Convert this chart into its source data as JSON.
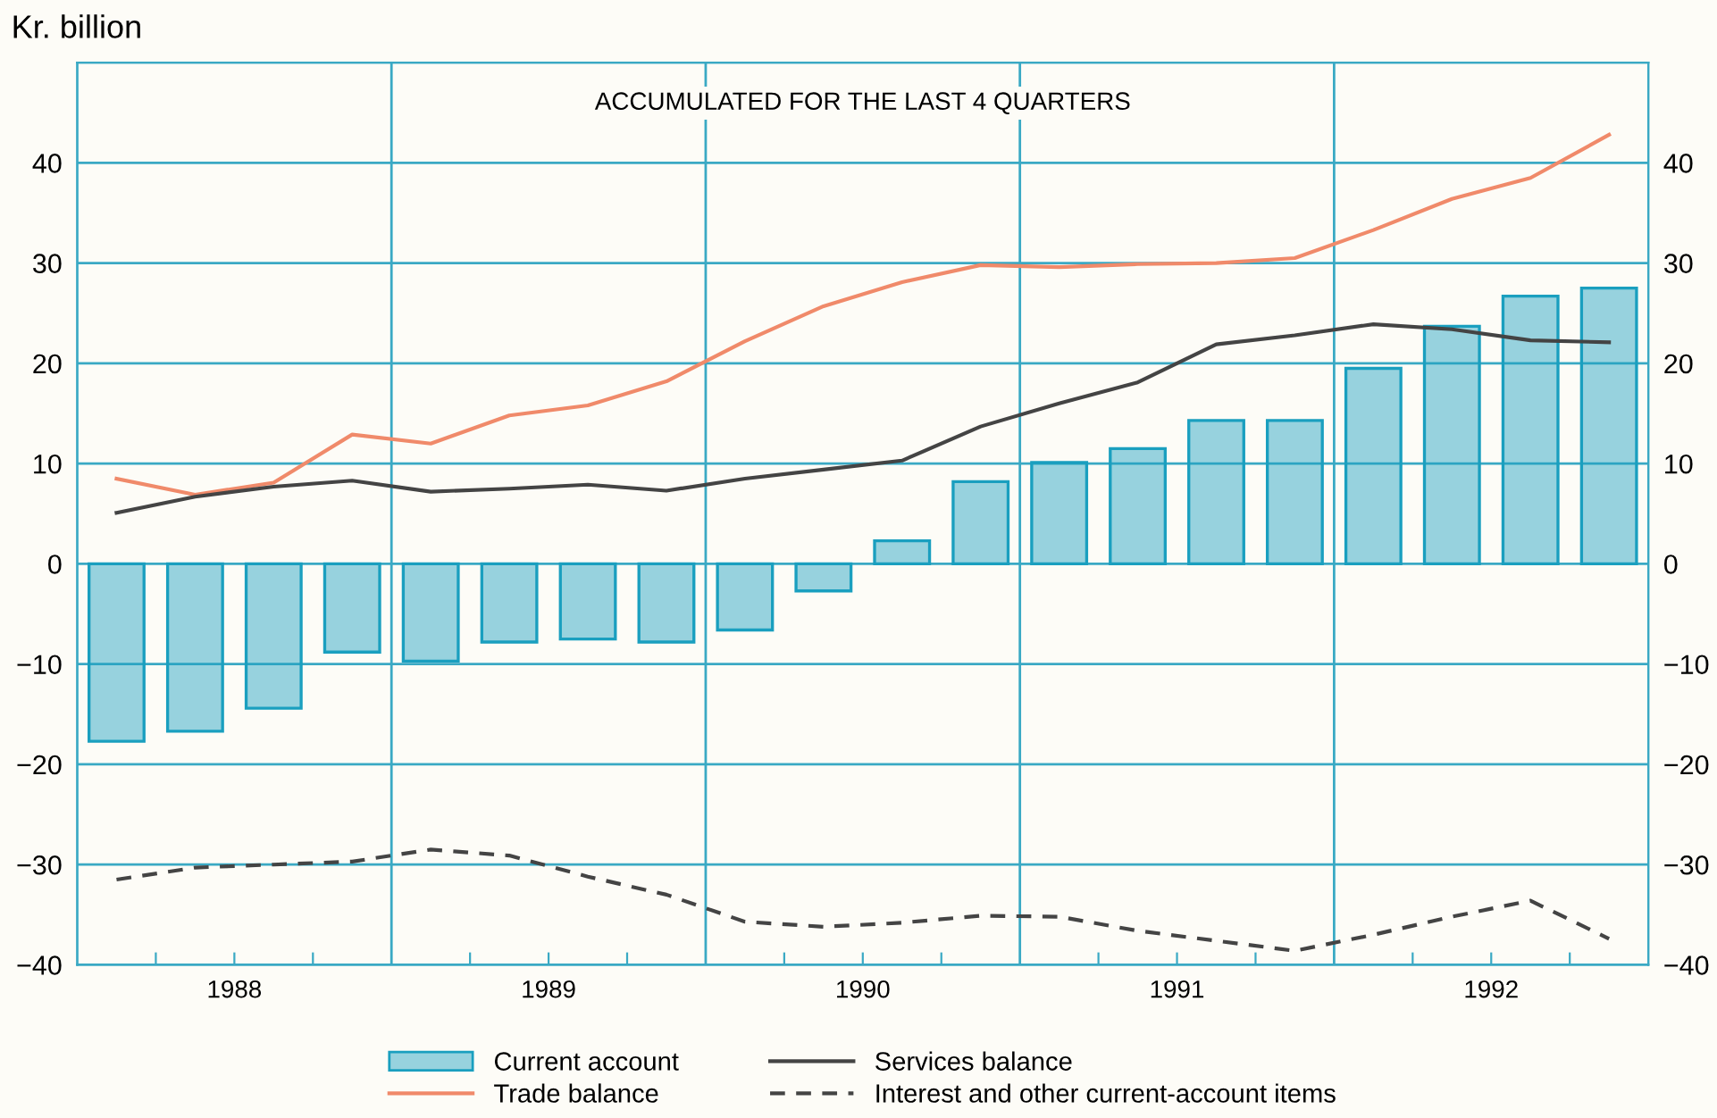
{
  "chart_data": {
    "type": "bar",
    "ylabel": "Kr. billion",
    "annotations": [
      "ACCUMULATED FOR THE LAST 4 QUARTERS"
    ],
    "x": [
      1988.125,
      1988.375,
      1988.625,
      1988.875,
      1989.125,
      1989.375,
      1989.625,
      1989.875,
      1990.125,
      1990.375,
      1990.625,
      1990.875,
      1991.125,
      1991.375,
      1991.625,
      1991.875,
      1992.125,
      1992.375,
      1992.625,
      1992.875
    ],
    "series": [
      {
        "name": "Current account",
        "color": "#1a9fbf",
        "values": [
          -17.7,
          -16.7,
          -14.4,
          -8.8,
          -9.7,
          -7.8,
          -7.5,
          -7.8,
          -6.6,
          -2.7,
          2.3,
          8.2,
          10.1,
          11.5,
          14.3,
          14.3,
          19.5,
          23.7,
          26.7,
          27.5
        ]
      },
      {
        "name": "Trade balance",
        "type": "line",
        "color": "#f08a6a",
        "line_style": "solid",
        "values": [
          8.5,
          6.9,
          8.1,
          12.9,
          12.0,
          14.8,
          15.8,
          18.2,
          22.2,
          25.7,
          28.1,
          29.8,
          29.6,
          29.9,
          30.0,
          30.5,
          33.3,
          36.4,
          38.5,
          42.8
        ]
      },
      {
        "name": "Services balance",
        "type": "line",
        "color": "#444444",
        "line_style": "solid",
        "values": [
          5.1,
          6.7,
          7.7,
          8.3,
          7.2,
          7.5,
          7.9,
          7.3,
          8.5,
          9.4,
          10.3,
          13.7,
          16.0,
          18.1,
          21.9,
          22.8,
          23.9,
          23.4,
          22.3,
          22.1
        ]
      },
      {
        "name": "Interest and other current-account items",
        "type": "line",
        "color": "#444444",
        "line_style": "dashed",
        "values": [
          -31.5,
          -30.3,
          -30.0,
          -29.7,
          -28.5,
          -29.1,
          -31.2,
          -33.0,
          -35.7,
          -36.2,
          -35.8,
          -35.1,
          -35.2,
          -36.6,
          -37.6,
          -38.6,
          -37.0,
          -35.2,
          -33.6,
          -37.4
        ]
      }
    ],
    "xlim": [
      1988,
      1993
    ],
    "xticks": [
      {
        "value": 1988.25,
        "label": null
      },
      {
        "value": 1988.5,
        "label": "1988"
      },
      {
        "value": 1988.75,
        "label": null
      },
      {
        "value": 1989.25,
        "label": null
      },
      {
        "value": 1989.5,
        "label": "1989"
      },
      {
        "value": 1989.75,
        "label": null
      },
      {
        "value": 1990.25,
        "label": null
      },
      {
        "value": 1990.5,
        "label": "1990"
      },
      {
        "value": 1990.75,
        "label": null
      },
      {
        "value": 1991.25,
        "label": null
      },
      {
        "value": 1991.5,
        "label": "1991"
      },
      {
        "value": 1991.75,
        "label": null
      },
      {
        "value": 1992.25,
        "label": null
      },
      {
        "value": 1992.5,
        "label": "1992"
      },
      {
        "value": 1992.75,
        "label": null
      }
    ],
    "ylim": [
      -40,
      50
    ],
    "yticks": [
      -40,
      -30,
      -20,
      -10,
      0,
      10,
      20,
      30,
      40
    ],
    "y2lim": [
      -40,
      50
    ],
    "y2ticks": [
      -40,
      -30,
      -20,
      -10,
      0,
      10,
      20,
      30,
      40
    ],
    "ref_lines": [
      {
        "axis": "x",
        "value": 1989,
        "color": "#3aa9c4"
      },
      {
        "axis": "x",
        "value": 1990,
        "color": "#3aa9c4"
      },
      {
        "axis": "x",
        "value": 1991,
        "color": "#3aa9c4"
      },
      {
        "axis": "x",
        "value": 1992,
        "color": "#3aa9c4"
      }
    ],
    "grid": "y",
    "legend": "bottom"
  }
}
